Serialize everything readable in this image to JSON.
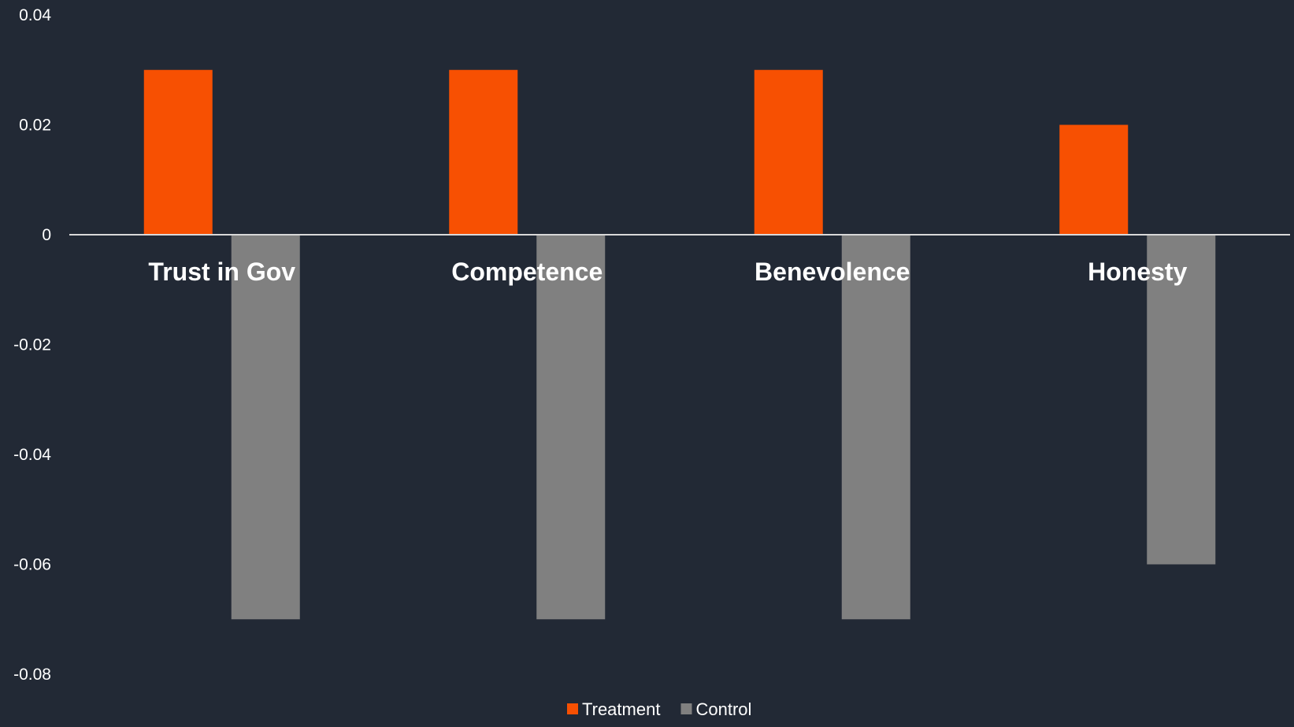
{
  "chart_data": {
    "type": "bar",
    "categories": [
      "Trust in Gov",
      "Competence",
      "Benevolence",
      "Honesty"
    ],
    "series": [
      {
        "name": "Treatment",
        "color": "#f75002",
        "values": [
          0.03,
          0.03,
          0.03,
          0.02
        ]
      },
      {
        "name": "Control",
        "color": "#808080",
        "values": [
          -0.07,
          -0.07,
          -0.07,
          -0.06
        ]
      }
    ],
    "yticks": [
      "0.04",
      "0.02",
      "0",
      "-0.02",
      "-0.04",
      "-0.06",
      "-0.08"
    ],
    "ylim": [
      -0.08,
      0.04
    ],
    "grid": false,
    "legend_position": "bottom-center",
    "background": "#222935",
    "axis_color": "#d9d9d9"
  }
}
